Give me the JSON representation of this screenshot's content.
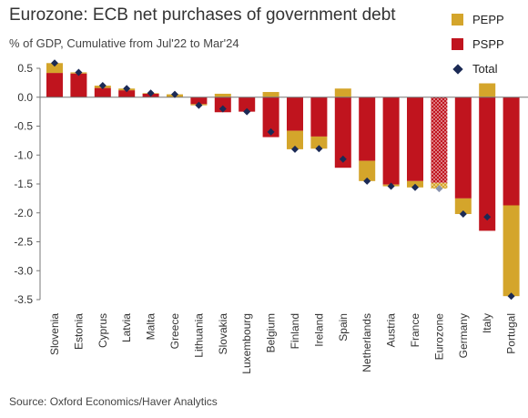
{
  "title": "Eurozone: ECB net purchases of government debt",
  "subtitle": "% of GDP, Cumulative from Jul'22 to Mar'24",
  "source": "Source: Oxford Economics/Haver Analytics",
  "colors": {
    "pepp": "#D4A52B",
    "pspp": "#C0141E",
    "total": "#1B2A55"
  },
  "chart_data": {
    "type": "bar",
    "stacked": true,
    "title": "Eurozone: ECB net purchases of government debt",
    "subtitle": "% of GDP, Cumulative from Jul'22 to Mar'24",
    "ylim": [
      -3.5,
      0.5
    ],
    "yticks": [
      "0.5",
      "0.0",
      "-0.5",
      "-1.0",
      "-1.5",
      "-2.0",
      "-2.5",
      "-3.0",
      "-3.5"
    ],
    "ytick_values": [
      0.5,
      0.0,
      -0.5,
      -1.0,
      -1.5,
      -2.0,
      -2.5,
      -3.0,
      -3.5
    ],
    "legend_position": "top-right",
    "grid": false,
    "categories": [
      "Slovenia",
      "Estonia",
      "Cyprus",
      "Latvia",
      "Malta",
      "Greece",
      "Lithuania",
      "Slovakia",
      "Luxembourg",
      "Belgium",
      "Finland",
      "Ireland",
      "Spain",
      "Netherlands",
      "Austria",
      "France",
      "Eurozone",
      "Germany",
      "Italy",
      "Portugal"
    ],
    "highlighted_category": "Eurozone",
    "series": [
      {
        "name": "PEPP",
        "values": [
          0.17,
          0.02,
          0.04,
          0.03,
          0.01,
          0.05,
          -0.02,
          0.06,
          0.0,
          0.09,
          -0.32,
          -0.21,
          0.15,
          -0.35,
          -0.03,
          -0.11,
          -0.1,
          -0.27,
          0.24,
          -1.57
        ]
      },
      {
        "name": "PSPP",
        "values": [
          0.42,
          0.41,
          0.16,
          0.12,
          0.06,
          0.0,
          -0.12,
          -0.26,
          -0.25,
          -0.69,
          -0.58,
          -0.68,
          -1.22,
          -1.1,
          -1.51,
          -1.45,
          -1.48,
          -1.75,
          -2.31,
          -1.87
        ]
      },
      {
        "name": "Total",
        "values": [
          0.59,
          0.43,
          0.2,
          0.15,
          0.07,
          0.05,
          -0.14,
          -0.2,
          -0.25,
          -0.6,
          -0.9,
          -0.89,
          -1.07,
          -1.45,
          -1.54,
          -1.56,
          -1.58,
          -2.02,
          -2.07,
          -3.44
        ]
      }
    ]
  }
}
